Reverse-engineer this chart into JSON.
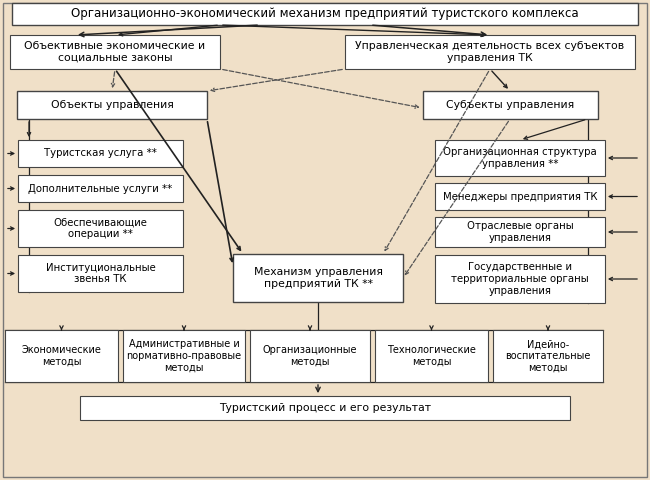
{
  "bg_color": "#f0e0c8",
  "box_color": "#ffffff",
  "box_edge": "#444444",
  "arrow_color": "#222222",
  "dash_color": "#555555",
  "title": "Организационно-экономический механизм предприятий туристского комплекса",
  "box1_left": "Объективные экономические и\nсоциальные законы",
  "box1_right": "Управленческая деятельность всех субъектов\nуправления ТК",
  "box_obj": "Объекты управления",
  "box_subj": "Субъекты управления",
  "box_mech": "Механизм управления\nпредприятий ТК **",
  "left_items": [
    "Туристская услуга **",
    "Дополнительные услуги **",
    "Обеспечивающие\nоперации **",
    "Институциональные\nзвенья ТК"
  ],
  "right_items": [
    "Организационная структура\nуправления **",
    "Менеджеры предприятия ТК",
    "Отраслевые органы\nуправления",
    "Государственные и\nтерриториальные органы\nуправления"
  ],
  "bottom_items": [
    "Экономические\nметоды",
    "Административные и\nnормативно-правовые\nметоды",
    "Организационные\nметоды",
    "Технологические\nметоды",
    "Идейно-\nвоспитательные\nметоды"
  ],
  "footer": "Туристский процесс и его результат"
}
